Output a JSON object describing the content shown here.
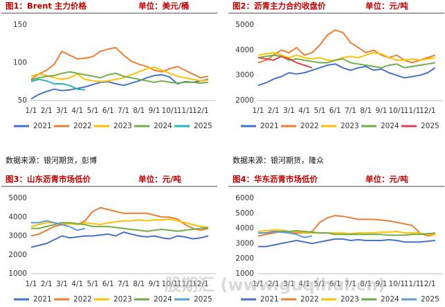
{
  "chart_data": [
    {
      "type": "line",
      "title": "图1：Brent 主力价格",
      "unit": "单位：美元/桶",
      "categories": [
        "1/1",
        null,
        "2/1",
        null,
        "3/1",
        null,
        "4/1",
        null,
        "5/1",
        null,
        "6/1",
        null,
        "7/1",
        null,
        "8/1",
        null,
        "9/1",
        null,
        "10/1",
        null,
        "11/1",
        null,
        "12/1",
        null
      ],
      "ylim": [
        50,
        150
      ],
      "yticks": [
        50,
        100,
        150
      ],
      "series": [
        {
          "name": "2021",
          "color": "#4472c4",
          "values": [
            52,
            58,
            62,
            65,
            63,
            64,
            66,
            68,
            71,
            74,
            75,
            72,
            70,
            73,
            76,
            80,
            83,
            84,
            81,
            72,
            75,
            74,
            76,
            78
          ]
        },
        {
          "name": "2022",
          "color": "#ed7d31",
          "values": [
            78,
            85,
            90,
            98,
            115,
            110,
            105,
            106,
            108,
            115,
            118,
            120,
            110,
            102,
            98,
            95,
            90,
            88,
            92,
            95,
            90,
            85,
            80,
            82
          ]
        },
        {
          "name": "2023",
          "color": "#ffc000",
          "values": [
            82,
            85,
            83,
            80,
            78,
            80,
            85,
            78,
            76,
            75,
            76,
            78,
            80,
            84,
            88,
            92,
            94,
            90,
            86,
            82,
            80,
            78,
            76,
            77
          ]
        },
        {
          "name": "2024",
          "color": "#70ad47",
          "values": [
            77,
            80,
            82,
            83,
            86,
            88,
            86,
            84,
            82,
            80,
            84,
            86,
            82,
            80,
            78,
            76,
            74,
            76,
            74,
            73,
            74,
            74,
            73,
            74
          ]
        },
        {
          "name": "2025",
          "color": "#2bb5b5",
          "values": [
            75,
            78,
            76,
            72,
            72,
            70,
            65,
            64,
            null,
            null,
            null,
            null,
            null,
            null,
            null,
            null,
            null,
            null,
            null,
            null,
            null,
            null,
            null,
            null
          ]
        }
      ]
    },
    {
      "type": "line",
      "title": "图2：沥青主力合约收盘价",
      "unit": "单位：元/吨",
      "categories": [
        "1/1",
        null,
        "2/1",
        null,
        "3/1",
        null,
        "4/1",
        null,
        "5/1",
        null,
        "6/1",
        null,
        "7/1",
        null,
        "8/1",
        null,
        "9/1",
        null,
        "10/1",
        null,
        "11/1",
        null,
        "12/1",
        null
      ],
      "ylim": [
        2000,
        5000
      ],
      "yticks": [
        2000,
        3000,
        4000,
        5000
      ],
      "series": [
        {
          "name": "2021",
          "color": "#4472c4",
          "values": [
            2600,
            2700,
            2850,
            2950,
            3100,
            3050,
            3100,
            3200,
            3300,
            3400,
            3450,
            3300,
            3200,
            3300,
            3350,
            3200,
            3250,
            3100,
            3000,
            2900,
            2950,
            3000,
            3100,
            3300
          ]
        },
        {
          "name": "2022",
          "color": "#ed7d31",
          "values": [
            3500,
            3600,
            3800,
            4000,
            3900,
            4100,
            3800,
            3900,
            4200,
            4600,
            4800,
            4700,
            4300,
            4100,
            3900,
            4000,
            3800,
            3700,
            3800,
            3600,
            3500,
            3600,
            3700,
            3800
          ]
        },
        {
          "name": "2023",
          "color": "#ffc000",
          "values": [
            3800,
            3850,
            3900,
            3800,
            3700,
            3800,
            3700,
            3650,
            3700,
            3600,
            3600,
            3700,
            3750,
            3700,
            3800,
            3900,
            3850,
            3700,
            3600,
            3600,
            3650,
            3600,
            3650,
            3700
          ]
        },
        {
          "name": "2024",
          "color": "#70ad47",
          "values": [
            3700,
            3750,
            3800,
            3750,
            3600,
            3650,
            3600,
            3550,
            3500,
            3500,
            3600,
            3650,
            3500,
            3450,
            3400,
            3350,
            3300,
            3400,
            3450,
            3300,
            3350,
            3400,
            3450,
            3500
          ]
        },
        {
          "name": "2025",
          "color": "#e0404f",
          "values": [
            3700,
            3650,
            3600,
            3750,
            3650,
            3500,
            3400,
            3300,
            null,
            null,
            null,
            null,
            null,
            null,
            null,
            null,
            null,
            null,
            null,
            null,
            null,
            null,
            null,
            null
          ]
        }
      ]
    },
    {
      "type": "line",
      "title": "图3：山东沥青市场低价",
      "unit": "单位：元/吨",
      "categories": [
        "1/1",
        null,
        "2/1",
        null,
        "3/1",
        null,
        "4/1",
        null,
        "5/1",
        null,
        "6/1",
        null,
        "7/1",
        null,
        "8/1",
        null,
        "9/1",
        null,
        "10/1",
        null,
        "11/1",
        null,
        "12/1",
        null
      ],
      "ylim": [
        1000,
        5000
      ],
      "yticks": [
        1000,
        2000,
        3000,
        4000,
        5000
      ],
      "series": [
        {
          "name": "2021",
          "color": "#4472c4",
          "values": [
            2400,
            2500,
            2600,
            2800,
            3000,
            2900,
            2950,
            3000,
            3000,
            3050,
            3100,
            3000,
            3200,
            3100,
            3000,
            2950,
            3000,
            2900,
            2850,
            3000,
            2950,
            2850,
            2900,
            3000
          ]
        },
        {
          "name": "2022",
          "color": "#ed7d31",
          "values": [
            3000,
            3100,
            3300,
            3500,
            3600,
            3700,
            3600,
            3800,
            4300,
            4500,
            4400,
            4300,
            4200,
            4200,
            4200,
            4200,
            4100,
            4000,
            4000,
            3900,
            3600,
            3400,
            3300,
            3400
          ]
        },
        {
          "name": "2023",
          "color": "#ffc000",
          "values": [
            3500,
            3600,
            3700,
            3700,
            3600,
            3650,
            3600,
            3700,
            3650,
            3600,
            3700,
            3750,
            3800,
            3800,
            3850,
            3800,
            3850,
            3850,
            3900,
            3800,
            3700,
            3600,
            3500,
            3450
          ]
        },
        {
          "name": "2024",
          "color": "#70ad47",
          "values": [
            3400,
            3400,
            3500,
            3600,
            3700,
            3700,
            3650,
            3600,
            3500,
            3500,
            3500,
            3450,
            3400,
            3350,
            3300,
            3250,
            3300,
            3350,
            3300,
            3250,
            3300,
            3350,
            3400,
            3450
          ]
        },
        {
          "name": "2025",
          "color": "#5b9bd5",
          "values": [
            3700,
            3700,
            3800,
            3700,
            3600,
            3500,
            3300,
            3400,
            null,
            null,
            null,
            null,
            null,
            null,
            null,
            null,
            null,
            null,
            null,
            null,
            null,
            null,
            null,
            null
          ]
        }
      ]
    },
    {
      "type": "line",
      "title": "图4：华东沥青市场低价",
      "unit": "单位：元/吨",
      "categories": [
        "1/1",
        null,
        "2/1",
        null,
        "3/1",
        null,
        "4/1",
        null,
        "5/1",
        null,
        "6/1",
        null,
        "7/1",
        null,
        "8/1",
        null,
        "9/1",
        null,
        "10/1",
        null,
        "11/1",
        null,
        "12/1",
        null
      ],
      "ylim": [
        1000,
        6000
      ],
      "yticks": [
        1000,
        2000,
        3000,
        4000,
        5000,
        6000
      ],
      "series": [
        {
          "name": "2021",
          "color": "#4472c4",
          "values": [
            2800,
            2800,
            2900,
            3000,
            3100,
            3200,
            3100,
            3000,
            3100,
            3200,
            3300,
            3300,
            3200,
            3250,
            3200,
            3200,
            3200,
            3250,
            3200,
            3100,
            3100,
            3100,
            3150,
            3200
          ]
        },
        {
          "name": "2022",
          "color": "#ed7d31",
          "values": [
            3500,
            3600,
            3700,
            3800,
            3700,
            3700,
            3700,
            3800,
            4400,
            4700,
            4850,
            4800,
            4700,
            4600,
            4600,
            4600,
            4550,
            4500,
            4400,
            4300,
            4200,
            3700,
            3500,
            3600
          ]
        },
        {
          "name": "2023",
          "color": "#ffc000",
          "values": [
            3800,
            3850,
            3900,
            3900,
            3800,
            3800,
            3700,
            3700,
            3700,
            3700,
            3700,
            3700,
            3650,
            3700,
            3700,
            3700,
            3750,
            3750,
            3800,
            3700,
            3700,
            3700,
            3600,
            3600
          ]
        },
        {
          "name": "2024",
          "color": "#70ad47",
          "values": [
            3700,
            3700,
            3800,
            3800,
            3800,
            3850,
            3800,
            3750,
            3700,
            3700,
            3600,
            3600,
            3600,
            3600,
            3600,
            3600,
            3600,
            3550,
            3550,
            3550,
            3600,
            3600,
            3650,
            3700
          ]
        },
        {
          "name": "2025",
          "color": "#5b9bd5",
          "values": [
            3700,
            3700,
            3800,
            3750,
            3700,
            3600,
            3400,
            3500,
            null,
            null,
            null,
            null,
            null,
            null,
            null,
            null,
            null,
            null,
            null,
            null,
            null,
            null,
            null,
            null
          ]
        }
      ]
    }
  ],
  "sources": [
    "数据来源：银河期货，彭博",
    "数据来源：银河期货，隆众"
  ],
  "watermark": "股期汇 (www.guqihui.cn)"
}
